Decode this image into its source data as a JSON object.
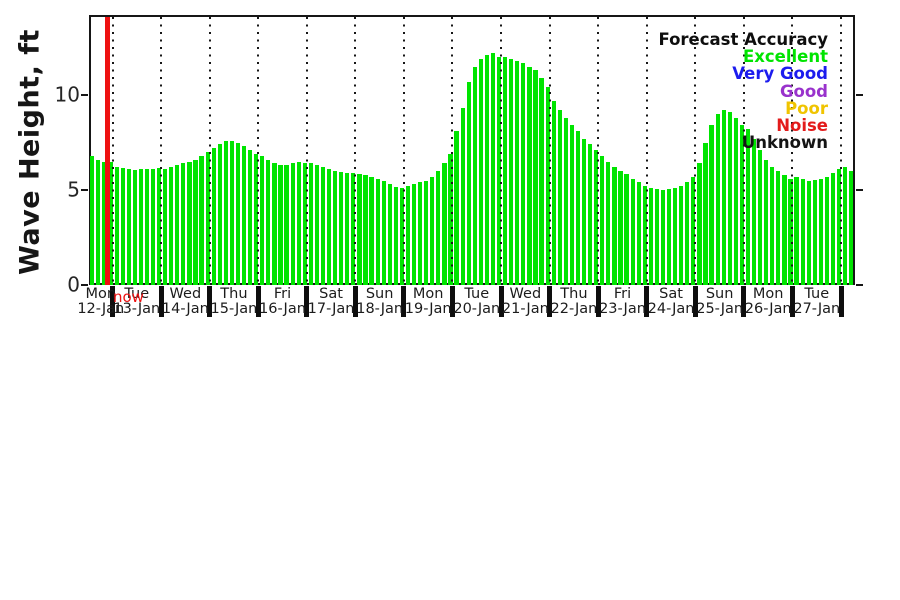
{
  "chart_data": {
    "type": "bar",
    "title": "",
    "ylabel": "Wave Height, ft",
    "ylim": [
      0,
      14.2
    ],
    "yticks": [
      0,
      5,
      10
    ],
    "bar_interval_hours": 3,
    "bar_color": "#00e400",
    "bar_color_meaning": "Excellent forecast accuracy",
    "grid": "dotted vertical lines at day boundaries",
    "legend_position": "top-right-inside",
    "now_marker": {
      "label": "now",
      "color": "#ee1111",
      "day": "Mon 12-Jan"
    },
    "days": [
      {
        "day": "Mon",
        "date": "12-Jan",
        "values": [
          6.8,
          6.6,
          6.5,
          6.5
        ]
      },
      {
        "day": "Tue",
        "date": "13-Jan",
        "values": [
          6.2,
          6.15,
          6.1,
          6.05,
          6.1,
          6.1,
          6.1,
          6.15
        ]
      },
      {
        "day": "Wed",
        "date": "14-Jan",
        "values": [
          6.1,
          6.2,
          6.3,
          6.4,
          6.5,
          6.6,
          6.8,
          7.0
        ]
      },
      {
        "day": "Thu",
        "date": "15-Jan",
        "values": [
          7.2,
          7.4,
          7.6,
          7.6,
          7.5,
          7.3,
          7.1,
          6.9
        ]
      },
      {
        "day": "Fri",
        "date": "16-Jan",
        "values": [
          6.8,
          6.6,
          6.4,
          6.3,
          6.3,
          6.4,
          6.5,
          6.4
        ]
      },
      {
        "day": "Sat",
        "date": "17-Jan",
        "values": [
          6.4,
          6.3,
          6.2,
          6.1,
          6.0,
          5.95,
          5.9,
          5.9
        ]
      },
      {
        "day": "Sun",
        "date": "18-Jan",
        "values": [
          5.85,
          5.8,
          5.7,
          5.6,
          5.5,
          5.3,
          5.15,
          5.1
        ]
      },
      {
        "day": "Mon",
        "date": "19-Jan",
        "values": [
          5.2,
          5.3,
          5.4,
          5.5,
          5.7,
          6.0,
          6.4,
          6.9
        ]
      },
      {
        "day": "Tue",
        "date": "20-Jan",
        "values": [
          8.1,
          9.3,
          10.7,
          11.5,
          11.9,
          12.1,
          12.2,
          12.0
        ]
      },
      {
        "day": "Wed",
        "date": "21-Jan",
        "values": [
          12.0,
          11.9,
          11.8,
          11.7,
          11.5,
          11.3,
          10.9,
          10.4
        ]
      },
      {
        "day": "Thu",
        "date": "22-Jan",
        "values": [
          9.7,
          9.2,
          8.8,
          8.4,
          8.1,
          7.7,
          7.4,
          7.1
        ]
      },
      {
        "day": "Fri",
        "date": "23-Jan",
        "values": [
          6.8,
          6.5,
          6.2,
          6.0,
          5.85,
          5.6,
          5.4,
          5.2
        ]
      },
      {
        "day": "Sat",
        "date": "24-Jan",
        "values": [
          5.1,
          5.05,
          5.0,
          5.05,
          5.1,
          5.2,
          5.4,
          5.7
        ]
      },
      {
        "day": "Sun",
        "date": "25-Jan",
        "values": [
          6.4,
          7.5,
          8.4,
          9.0,
          9.2,
          9.1,
          8.8,
          8.4
        ]
      },
      {
        "day": "Mon",
        "date": "26-Jan",
        "values": [
          8.2,
          7.7,
          7.1,
          6.6,
          6.2,
          6.0,
          5.8,
          5.6
        ]
      },
      {
        "day": "Tue",
        "date": "27-Jan",
        "values": [
          5.7,
          5.6,
          5.5,
          5.55,
          5.6,
          5.7,
          5.9,
          6.1
        ]
      }
    ],
    "trailing_values": [
      6.2,
      6.0
    ]
  },
  "legend": {
    "title": "Forecast Accuracy",
    "items": [
      {
        "label": "Excellent",
        "color": "#00e400"
      },
      {
        "label": "Very Good",
        "color": "#1c1cee"
      },
      {
        "label": "Good",
        "color": "#9932cc"
      },
      {
        "label": "Poor",
        "color": "#f0c400"
      },
      {
        "label": "Noise",
        "color": "#e31b1b"
      },
      {
        "label": "Unknown",
        "color": "#141414"
      }
    ]
  },
  "axis": {
    "frame_color": "#161616",
    "now_line_color": "#ee1111"
  }
}
